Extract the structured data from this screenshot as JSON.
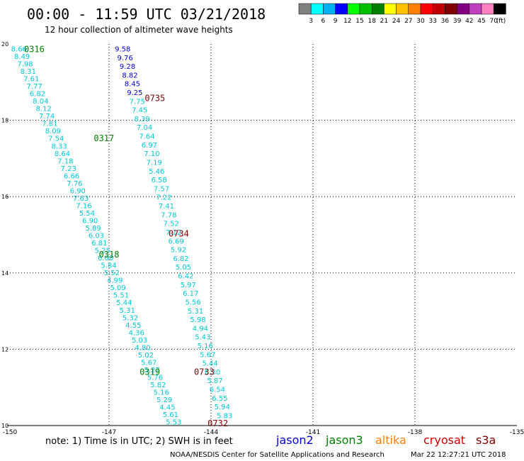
{
  "header": {
    "title": "00:00 - 11:59 UTC 03/21/2018",
    "subtitle": "12 hour collection of altimeter wave heights"
  },
  "colorbar": {
    "unit_label": "(ft)",
    "ticks": [
      "3",
      "6",
      "9",
      "12",
      "15",
      "18",
      "21",
      "24",
      "27",
      "30",
      "33",
      "36",
      "39",
      "42",
      "45",
      "70"
    ],
    "colors": [
      "#808080",
      "#00ffff",
      "#00b0f0",
      "#0000ff",
      "#00ff00",
      "#00c000",
      "#008000",
      "#ffff00",
      "#ffc000",
      "#ff8000",
      "#ff0000",
      "#c00000",
      "#800000",
      "#800080",
      "#c040c0",
      "#ff80c0",
      "#000000"
    ]
  },
  "footer": {
    "note": "note: 1) Time is in UTC; 2) SWH is in feet",
    "credit": "NOAA/NESDIS Center for Satellite Applications and Research",
    "timestamp": "Mar 22 12:27:21 UTC 2018",
    "satellites": [
      {
        "name": "jason2",
        "color": "#0000cc"
      },
      {
        "name": "jason3",
        "color": "#008000"
      },
      {
        "name": "altika",
        "color": "#ff8000"
      },
      {
        "name": "cryosat",
        "color": "#cc0000"
      },
      {
        "name": "s3a",
        "color": "#800000"
      }
    ]
  },
  "chart_data": {
    "type": "scatter",
    "title": "00:00 - 11:59 UTC 03/21/2018",
    "xlim": [
      -150,
      -135
    ],
    "ylim": [
      10,
      20
    ],
    "xticks": [
      -150,
      -147,
      -144,
      -141,
      -138,
      -135
    ],
    "xtick_labels": [
      "-150",
      "-147",
      "-144",
      "-141",
      "-138",
      "-135"
    ],
    "yticks": [
      10,
      12,
      14,
      16,
      18,
      20
    ],
    "ytick_labels": [
      "10",
      "12",
      "14",
      "16",
      "18",
      "20"
    ],
    "grid": true,
    "series": [
      {
        "name": "jason3",
        "color": "#00c8d8",
        "lon_start": -149.65,
        "lat_start": 19.88,
        "lon_end": -145.1,
        "lat_end": 10.1,
        "values": [
          "8.66",
          "8.49",
          "7.98",
          "8.31",
          "7.61",
          "7.77",
          "6.82",
          "8.04",
          "8.12",
          "7.74",
          "7.81",
          "8.09",
          "7.54",
          "8.33",
          "8.64",
          "7.18",
          "7.23",
          "6.66",
          "7.76",
          "6.90",
          "7.63",
          "7.16",
          "5.54",
          "6.90",
          "5.89",
          "6.03",
          "6.81",
          "5.25",
          "6.08",
          "5.84",
          "5.52",
          "4.99",
          "5.09",
          "5.51",
          "5.44",
          "5.31",
          "5.32",
          "4.55",
          "4.36",
          "5.03",
          "4.80",
          "5.02",
          "5.67",
          "5.27",
          "5.76",
          "5.82",
          "5.16",
          "5.29",
          "4.45",
          "5.61",
          "5.53"
        ]
      },
      {
        "name": "cryosat",
        "color": "#00c8d8",
        "lon_start": -146.6,
        "lat_start": 19.88,
        "lon_end": -143.6,
        "lat_end": 10.27,
        "values": [
          "9.58",
          "9.76",
          "9.28",
          "8.82",
          "8.45",
          "9.25",
          "7.75",
          "7.45",
          "8.39",
          "7.04",
          "7.64",
          "6.97",
          "7.10",
          "7.19",
          "5.46",
          "6.58",
          "7.57",
          "7.22",
          "7.41",
          "7.78",
          "7.52",
          "7.12",
          "6.69",
          "5.92",
          "6.82",
          "5.05",
          "6.42",
          "5.97",
          "6.17",
          "5.56",
          "5.31",
          "5.98",
          "4.94",
          "5.43",
          "5.16",
          "5.67",
          "5.44",
          "6.30",
          "5.87",
          "6.54",
          "6.55",
          "5.94",
          "5.83"
        ],
        "dark_count": 6
      }
    ],
    "time_labels": [
      {
        "text": "0316",
        "lon": -149.2,
        "lat": 19.88,
        "color": "#008000"
      },
      {
        "text": "0317",
        "lon": -147.15,
        "lat": 17.55,
        "color": "#008000"
      },
      {
        "text": "0318",
        "lon": -147.0,
        "lat": 14.5,
        "color": "#008000"
      },
      {
        "text": "0319",
        "lon": -145.8,
        "lat": 11.42,
        "color": "#008000"
      },
      {
        "text": "0735",
        "lon": -145.65,
        "lat": 18.6,
        "color": "#800000"
      },
      {
        "text": "0734",
        "lon": -144.95,
        "lat": 15.05,
        "color": "#800000"
      },
      {
        "text": "0733",
        "lon": -144.2,
        "lat": 11.42,
        "color": "#800000"
      },
      {
        "text": "0732",
        "lon": -143.8,
        "lat": 10.07,
        "color": "#800000"
      }
    ]
  }
}
